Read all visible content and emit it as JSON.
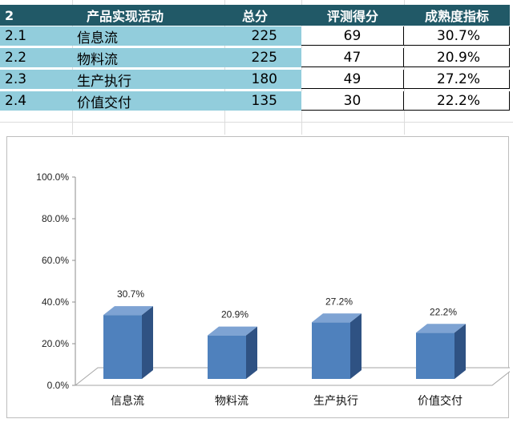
{
  "table": {
    "header": {
      "idx": "2",
      "name": "产品实现活动",
      "total": "总分",
      "score": "评测得分",
      "maturity": "成熟度指标"
    },
    "rows": [
      {
        "idx": "2.1",
        "name": "信息流",
        "total": "225",
        "score": "69",
        "maturity": "30.7%"
      },
      {
        "idx": "2.2",
        "name": "物料流",
        "total": "225",
        "score": "47",
        "maturity": "20.9%"
      },
      {
        "idx": "2.3",
        "name": "生产执行",
        "total": "180",
        "score": "49",
        "maturity": "27.2%"
      },
      {
        "idx": "2.4",
        "name": "价值交付",
        "total": "135",
        "score": "30",
        "maturity": "22.2%"
      }
    ],
    "colors": {
      "header_bg": "#215967",
      "header_text": "#ffffff",
      "cell_teal": "#92cddc"
    }
  },
  "chart_data": {
    "type": "bar",
    "style": "3d-column",
    "categories": [
      "信息流",
      "物料流",
      "生产执行",
      "价值交付"
    ],
    "values": [
      30.7,
      20.9,
      27.2,
      22.2
    ],
    "data_labels": [
      "30.7%",
      "20.9%",
      "27.2%",
      "22.2%"
    ],
    "yticks": [
      "0.0%",
      "20.0%",
      "40.0%",
      "60.0%",
      "80.0%",
      "100.0%"
    ],
    "ylim": [
      0,
      100
    ],
    "grid": false,
    "legend": "none",
    "colors": {
      "front": "#4f81bd",
      "side": "#2f5283",
      "top": "#7ea3d3",
      "floor": "#ffffff"
    }
  }
}
